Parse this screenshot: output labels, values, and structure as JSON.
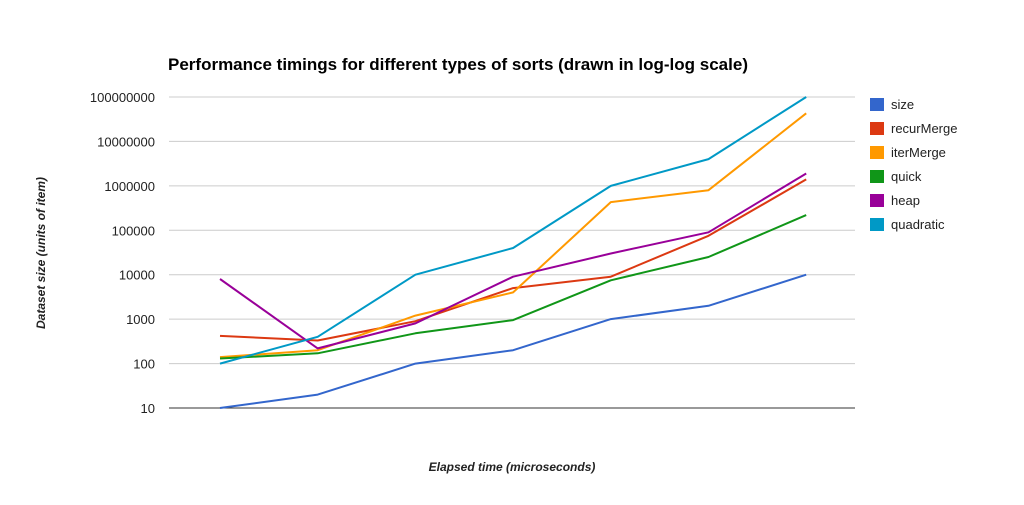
{
  "chart_data": {
    "type": "line",
    "title": "Performance timings for different types of sorts (drawn in log-log scale)",
    "xlabel": "Elapsed time (microseconds)",
    "ylabel": "Dataset size (units of item)",
    "y_scale": "log",
    "ylim": [
      10,
      100000000
    ],
    "y_ticks": [
      "10",
      "100",
      "1000",
      "10000",
      "100000",
      "1000000",
      "10000000",
      "100000000"
    ],
    "grid": true,
    "legend_position": "right",
    "point_count": 7,
    "series": [
      {
        "name": "size",
        "color": "#3366cc",
        "values": [
          10,
          20,
          100,
          200,
          1000,
          2000,
          10000
        ]
      },
      {
        "name": "recurMerge",
        "color": "#dc3912",
        "values": [
          420,
          330,
          900,
          5000,
          9000,
          75000,
          1400000
        ]
      },
      {
        "name": "iterMerge",
        "color": "#ff9900",
        "values": [
          140,
          200,
          1200,
          4000,
          430000,
          800000,
          43000000
        ]
      },
      {
        "name": "quick",
        "color": "#109618",
        "values": [
          130,
          170,
          480,
          950,
          7500,
          25000,
          220000
        ]
      },
      {
        "name": "heap",
        "color": "#990099",
        "values": [
          8000,
          220,
          800,
          9000,
          30000,
          90000,
          1900000
        ]
      },
      {
        "name": "quadratic",
        "color": "#0099c6",
        "values": [
          100,
          400,
          10000,
          40000,
          1000000,
          4000000,
          100000000
        ]
      }
    ]
  }
}
